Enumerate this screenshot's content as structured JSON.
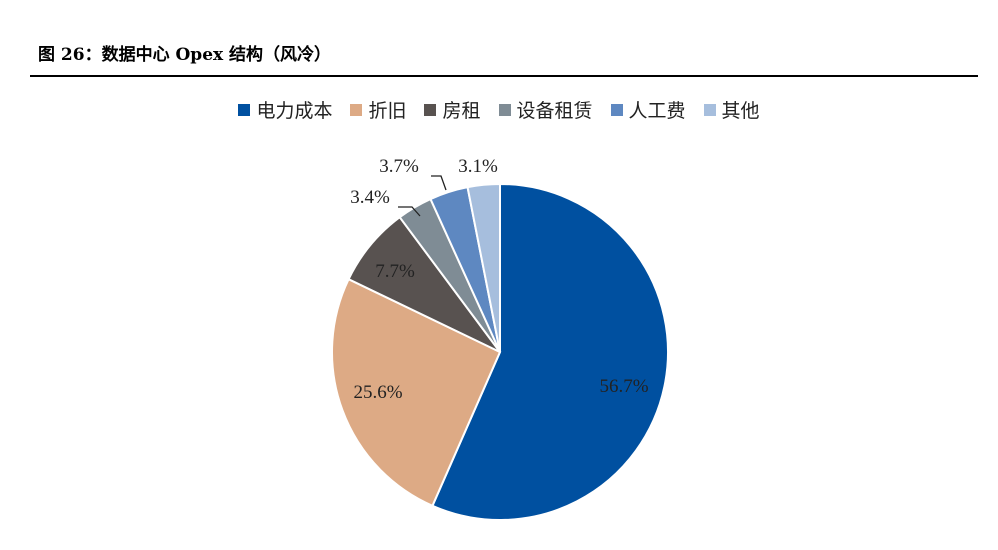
{
  "figure": {
    "title": "图 26：数据中心 Opex 结构（风冷）"
  },
  "chart_data": {
    "type": "pie",
    "title": "图 26：数据中心 Opex 结构（风冷）",
    "legend_position": "top",
    "slices": [
      {
        "name": "电力成本",
        "value": 56.7,
        "label": "56.7%",
        "color": "#0050A0"
      },
      {
        "name": "折旧",
        "value": 25.6,
        "label": "25.6%",
        "color": "#DDAA85"
      },
      {
        "name": "房租",
        "value": 7.7,
        "label": "7.7%",
        "color": "#585250"
      },
      {
        "name": "设备租赁",
        "value": 3.4,
        "label": "3.4%",
        "color": "#7F8C95"
      },
      {
        "name": "人工费",
        "value": 3.7,
        "label": "3.7%",
        "color": "#5E88C1"
      },
      {
        "name": "其他",
        "value": 3.1,
        "label": "3.1%",
        "color": "#A6BEDD"
      }
    ]
  }
}
